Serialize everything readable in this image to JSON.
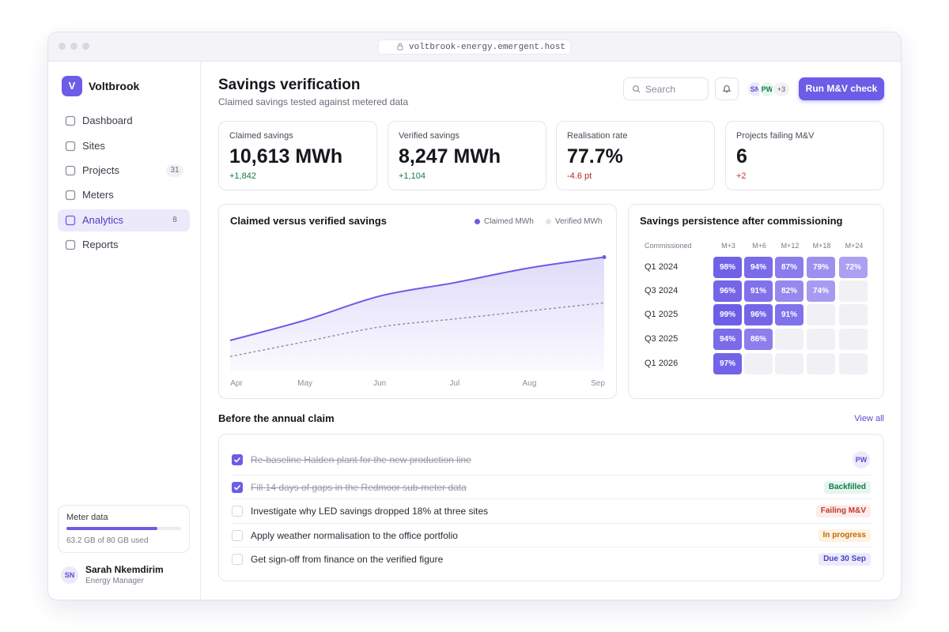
{
  "browser": {
    "url": "voltbrook-energy.emergent.host"
  },
  "sidebar": {
    "brand": {
      "initial": "V",
      "name": "Voltbrook"
    },
    "nav": [
      {
        "label": "Dashboard"
      },
      {
        "label": "Sites"
      },
      {
        "label": "Projects",
        "badge": 31
      },
      {
        "label": "Meters"
      },
      {
        "label": "Analytics",
        "badge": 8,
        "active": true
      },
      {
        "label": "Reports"
      }
    ],
    "storage": {
      "title": "Meter data",
      "used": 63.2,
      "capacity": 80,
      "label": "63.2 GB of 80 GB used"
    },
    "user": {
      "initials": "SN",
      "name": "Sarah Nkemdirim",
      "role": "Energy Manager"
    }
  },
  "header": {
    "title": "Savings verification",
    "subtitle": "Claimed savings tested against metered data",
    "search_placeholder": "Search",
    "avatars": [
      "SN",
      "PW"
    ],
    "more": "+3",
    "button": "Run M&V check"
  },
  "kpis": [
    {
      "label": "Claimed savings",
      "value": "10,613 MWh",
      "delta": "+1,842",
      "tone": "positive"
    },
    {
      "label": "Verified savings",
      "value": "8,247 MWh",
      "delta": "+1,104",
      "tone": "positive"
    },
    {
      "label": "Realisation rate",
      "value": "77.7%",
      "delta": "-4.6 pt",
      "tone": "negative"
    },
    {
      "label": "Projects failing M&V",
      "value": "6",
      "delta": "+2",
      "tone": "warning"
    }
  ],
  "chart_data": {
    "type": "area",
    "title": "Claimed versus verified savings",
    "categories": [
      "Apr",
      "May",
      "Jun",
      "Jul",
      "Aug",
      "Sep"
    ],
    "series": [
      {
        "name": "Claimed MWh",
        "color": "#6c5ce7",
        "values": [
          23,
          38,
          56,
          66,
          77,
          85
        ]
      },
      {
        "name": "Verified MWh",
        "color": "#8e8c9c",
        "values": [
          11,
          22,
          33,
          39,
          45,
          51
        ],
        "dashed": true
      }
    ],
    "ylim": [
      0,
      100
    ]
  },
  "heatmap": {
    "title": "Savings persistence after commissioning",
    "row_header": "Commissioned",
    "columns": [
      "M+3",
      "M+6",
      "M+12",
      "M+18",
      "M+24"
    ],
    "rows": [
      {
        "label": "Q1 2024",
        "values": [
          98,
          94,
          87,
          79,
          72
        ],
        "value_labels": [
          "98%",
          "94%",
          "87%",
          "79%",
          "72%"
        ]
      },
      {
        "label": "Q3 2024",
        "values": [
          96,
          91,
          82,
          74,
          null
        ],
        "value_labels": [
          "96%",
          "91%",
          "82%",
          "74%",
          null
        ]
      },
      {
        "label": "Q1 2025",
        "values": [
          99,
          96,
          91,
          null,
          null
        ],
        "value_labels": [
          "99%",
          "96%",
          "91%",
          null,
          null
        ]
      },
      {
        "label": "Q3 2025",
        "values": [
          94,
          86,
          null,
          null,
          null
        ],
        "value_labels": [
          "94%",
          "86%",
          null,
          null,
          null
        ]
      },
      {
        "label": "Q1 2026",
        "values": [
          97,
          null,
          null,
          null,
          null
        ],
        "value_labels": [
          "97%",
          null,
          null,
          null,
          null
        ]
      }
    ]
  },
  "tasks": {
    "title": "Before the annual claim",
    "link": "View all",
    "items": [
      {
        "text": "Re-baseline Halden plant for the new production line",
        "done": true,
        "assignee": "PW"
      },
      {
        "text": "Fill 14 days of gaps in the Redmoor sub-meter data",
        "done": true,
        "tag": "Backfilled",
        "tone": "success"
      },
      {
        "text": "Investigate why LED savings dropped 18% at three sites",
        "done": false,
        "tag": "Failing M&V",
        "tone": "danger"
      },
      {
        "text": "Apply weather normalisation to the office portfolio",
        "done": false,
        "tag": "In progress",
        "tone": "warning"
      },
      {
        "text": "Get sign-off from finance on the verified figure",
        "done": false,
        "tag": "Due 30 Sep",
        "tone": "info"
      }
    ]
  }
}
